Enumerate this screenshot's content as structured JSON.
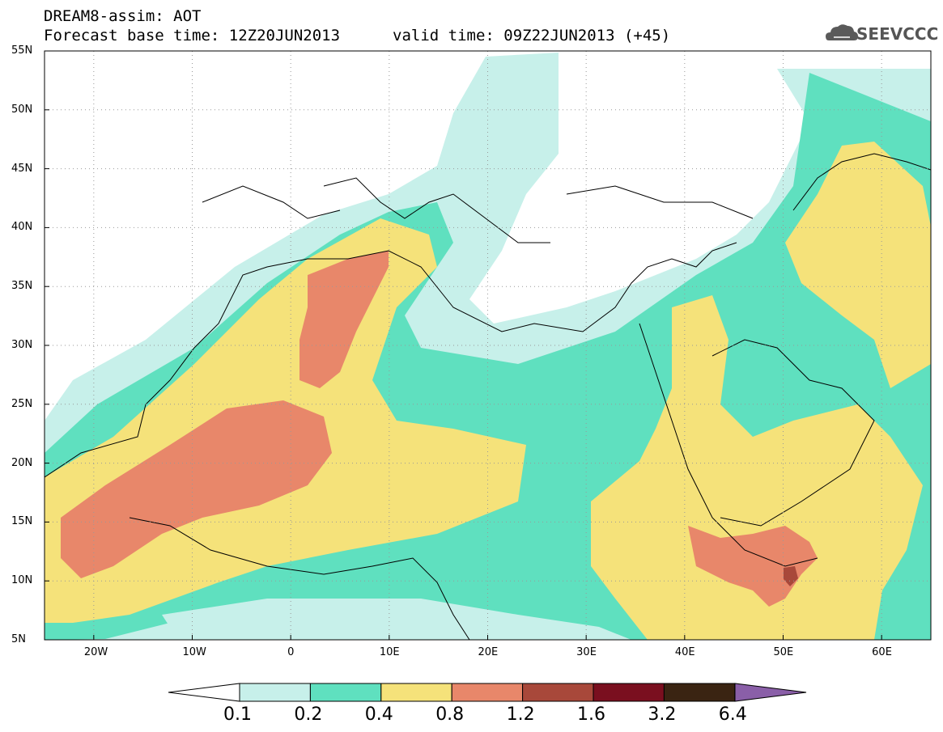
{
  "title": {
    "line1": "DREAM8-assim: AOT",
    "line2": "Forecast base time: 12Z20JUN2013",
    "valid": "valid time: 09Z22JUN2013 (+45)"
  },
  "logo": {
    "text": "SEEVCCC",
    "icon": "cloud-icon"
  },
  "map": {
    "lat_labels": [
      "55N",
      "50N",
      "45N",
      "40N",
      "35N",
      "30N",
      "25N",
      "20N",
      "15N",
      "10N",
      "5N"
    ],
    "lon_labels": [
      "20W",
      "10W",
      "0",
      "10E",
      "20E",
      "30E",
      "40E",
      "50E",
      "60E"
    ],
    "lon_range": [
      -25,
      65
    ],
    "lat_range": [
      5,
      55
    ],
    "grid": "dotted"
  },
  "colorbar": {
    "labels": [
      "0.1",
      "0.2",
      "0.4",
      "0.8",
      "1.2",
      "1.6",
      "3.2",
      "6.4"
    ],
    "colors": [
      "#c7f0ea",
      "#5fe0bf",
      "#f5e27a",
      "#e8876a",
      "#a8483a",
      "#7a0f1f",
      "#3a2412",
      "#8a5fa8"
    ],
    "extend_low_color": "#ffffff"
  }
}
